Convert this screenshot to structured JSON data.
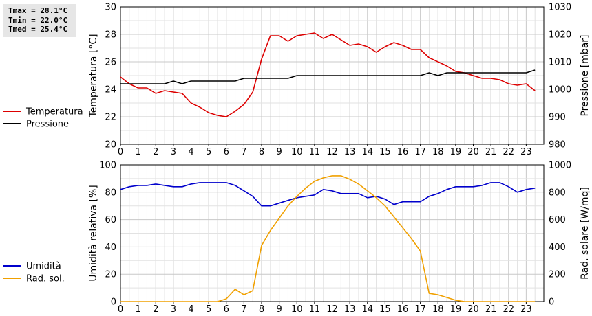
{
  "stats": [
    {
      "label": "Tmax = 28.1°C"
    },
    {
      "label": "Tmin = 22.0°C"
    },
    {
      "label": "Tmed = 25.4°C"
    }
  ],
  "chart_data": [
    {
      "type": "line",
      "x": [
        0,
        0.5,
        1,
        1.5,
        2,
        2.5,
        3,
        3.5,
        4,
        4.5,
        5,
        5.5,
        6,
        6.5,
        7,
        7.5,
        8,
        8.5,
        9,
        9.5,
        10,
        10.5,
        11,
        11.5,
        12,
        12.5,
        13,
        13.5,
        14,
        14.5,
        15,
        15.5,
        16,
        16.5,
        17,
        17.5,
        18,
        18.5,
        19,
        19.5,
        20,
        20.5,
        21,
        21.5,
        22,
        22.5,
        23,
        23.5
      ],
      "xlim": [
        0,
        24
      ],
      "xticks": [
        "0",
        "1",
        "2",
        "3",
        "4",
        "5",
        "6",
        "7",
        "8",
        "9",
        "10",
        "11",
        "12",
        "13",
        "14",
        "15",
        "16",
        "17",
        "18",
        "19",
        "20",
        "21",
        "22",
        "23"
      ],
      "ylabel": "Temperatura [°C]",
      "ylim": [
        20,
        30
      ],
      "yticks": [
        "20",
        "22",
        "24",
        "26",
        "28",
        "30"
      ],
      "y2label": "Pressione [mbar]",
      "y2lim": [
        980,
        1030
      ],
      "y2ticks": [
        "980",
        "990",
        "1000",
        "1010",
        "1020",
        "1030"
      ],
      "grid": true,
      "legend": "left",
      "series": [
        {
          "name": "Temperatura",
          "axis": "left",
          "color": "#dd0000",
          "values": [
            24.9,
            24.4,
            24.1,
            24.1,
            23.7,
            23.9,
            23.8,
            23.7,
            23.0,
            22.7,
            22.3,
            22.1,
            22.0,
            22.4,
            22.9,
            23.8,
            26.2,
            27.9,
            27.9,
            27.5,
            27.9,
            28.0,
            28.1,
            27.7,
            28.0,
            27.6,
            27.2,
            27.3,
            27.1,
            26.7,
            27.1,
            27.4,
            27.2,
            26.9,
            26.9,
            26.3,
            26.0,
            25.7,
            25.3,
            25.2,
            25.0,
            24.8,
            24.8,
            24.7,
            24.4,
            24.3,
            24.4,
            23.9
          ]
        },
        {
          "name": "Pressione",
          "axis": "right",
          "color": "#000000",
          "values": [
            1002,
            1002,
            1002,
            1002,
            1002,
            1002,
            1003,
            1002,
            1003,
            1003,
            1003,
            1003,
            1003,
            1003,
            1004,
            1004,
            1004,
            1004,
            1004,
            1004,
            1005,
            1005,
            1005,
            1005,
            1005,
            1005,
            1005,
            1005,
            1005,
            1005,
            1005,
            1005,
            1005,
            1005,
            1005,
            1006,
            1005,
            1006,
            1006,
            1006,
            1006,
            1006,
            1006,
            1006,
            1006,
            1006,
            1006,
            1007
          ]
        }
      ]
    },
    {
      "type": "line",
      "x": [
        0,
        0.5,
        1,
        1.5,
        2,
        2.5,
        3,
        3.5,
        4,
        4.5,
        5,
        5.5,
        6,
        6.5,
        7,
        7.5,
        8,
        8.5,
        9,
        9.5,
        10,
        10.5,
        11,
        11.5,
        12,
        12.5,
        13,
        13.5,
        14,
        14.5,
        15,
        15.5,
        16,
        16.5,
        17,
        17.5,
        18,
        18.5,
        19,
        19.5,
        20,
        20.5,
        21,
        21.5,
        22,
        22.5,
        23,
        23.5
      ],
      "xlim": [
        0,
        24
      ],
      "xticks": [
        "0",
        "1",
        "2",
        "3",
        "4",
        "5",
        "6",
        "7",
        "8",
        "9",
        "10",
        "11",
        "12",
        "13",
        "14",
        "15",
        "16",
        "17",
        "18",
        "19",
        "20",
        "21",
        "22",
        "23"
      ],
      "ylabel": "Umidità relativa [%]",
      "ylim": [
        0,
        100
      ],
      "yticks": [
        "0",
        "20",
        "40",
        "60",
        "80",
        "100"
      ],
      "y2label": "Rad. solare [W/mq]",
      "y2lim": [
        0,
        1000
      ],
      "y2ticks": [
        "0",
        "200",
        "400",
        "600",
        "800",
        "1000"
      ],
      "grid": true,
      "legend": "left",
      "series": [
        {
          "name": "Umidità",
          "axis": "left",
          "color": "#0000cc",
          "values": [
            82,
            84,
            85,
            85,
            86,
            85,
            84,
            84,
            86,
            87,
            87,
            87,
            87,
            85,
            81,
            77,
            70,
            70,
            72,
            74,
            76,
            77,
            78,
            82,
            81,
            79,
            79,
            79,
            76,
            77,
            75,
            71,
            73,
            73,
            73,
            77,
            79,
            82,
            84,
            84,
            84,
            85,
            87,
            87,
            84,
            80,
            82,
            83
          ]
        },
        {
          "name": "Rad. sol.",
          "axis": "right",
          "color": "#f0a000",
          "values": [
            0,
            0,
            0,
            0,
            0,
            0,
            0,
            0,
            0,
            0,
            0,
            0,
            20,
            90,
            50,
            80,
            410,
            520,
            610,
            700,
            770,
            830,
            880,
            905,
            920,
            920,
            895,
            860,
            810,
            760,
            700,
            620,
            540,
            460,
            370,
            60,
            50,
            30,
            10,
            0,
            0,
            0,
            0,
            0,
            0,
            0,
            0,
            0
          ]
        }
      ]
    }
  ]
}
